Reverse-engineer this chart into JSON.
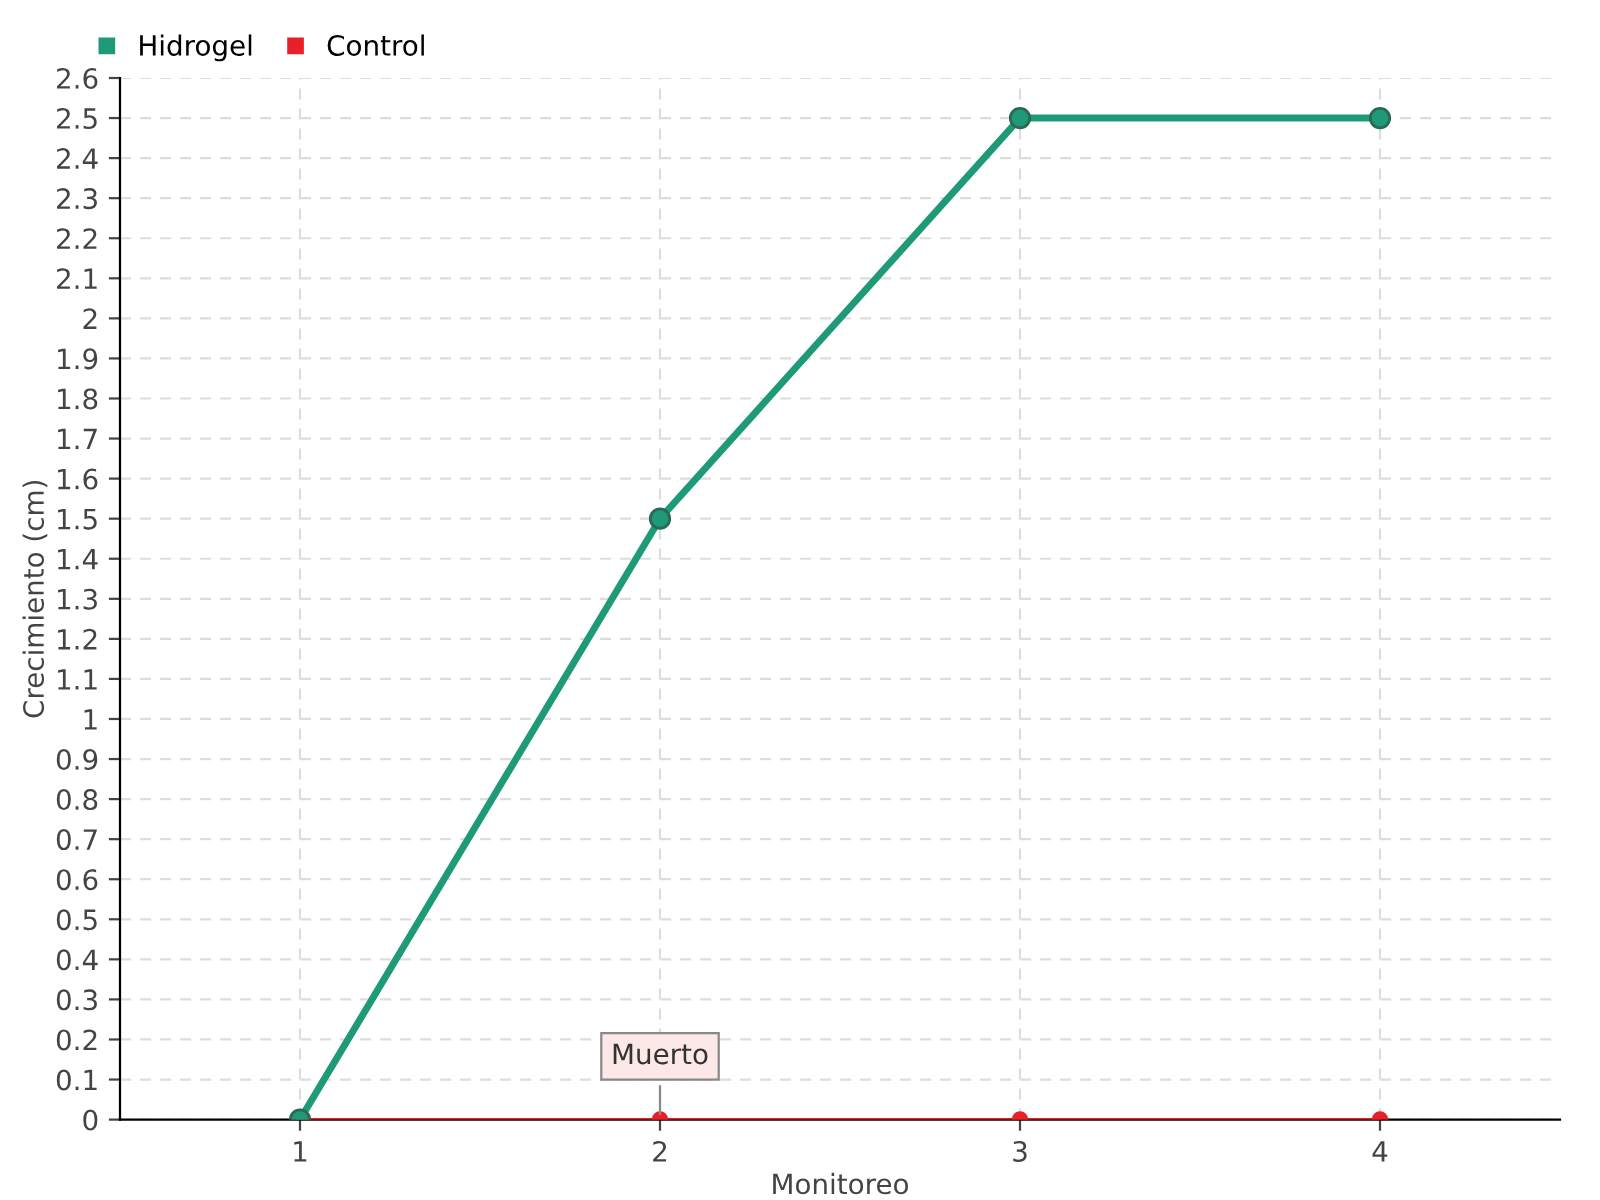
{
  "chart_data": {
    "type": "line",
    "xlabel": "Monitoreo",
    "ylabel": "Crecimiento (cm)",
    "categories": [
      "1",
      "2",
      "3",
      "4"
    ],
    "series": [
      {
        "name": "Hidrogel",
        "color": "#1f9a78",
        "values": [
          0,
          1.5,
          2.5,
          2.5
        ]
      },
      {
        "name": "Control",
        "color": "#e8202a",
        "values": [
          0,
          0,
          0,
          0
        ]
      }
    ],
    "ylim": [
      0,
      2.6
    ],
    "yticks": [
      0,
      0.1,
      0.2,
      0.3,
      0.4,
      0.5,
      0.6,
      0.7,
      0.8,
      0.9,
      1,
      1.1,
      1.2,
      1.3,
      1.4,
      1.5,
      1.6,
      1.7,
      1.8,
      1.9,
      2,
      2.1,
      2.2,
      2.3,
      2.4,
      2.5,
      2.6
    ],
    "annotations": [
      {
        "text": "Muerto",
        "x": "2",
        "y": 0
      }
    ],
    "grid": true,
    "legend": "top left",
    "marker": "circle",
    "line_style": "solid"
  }
}
